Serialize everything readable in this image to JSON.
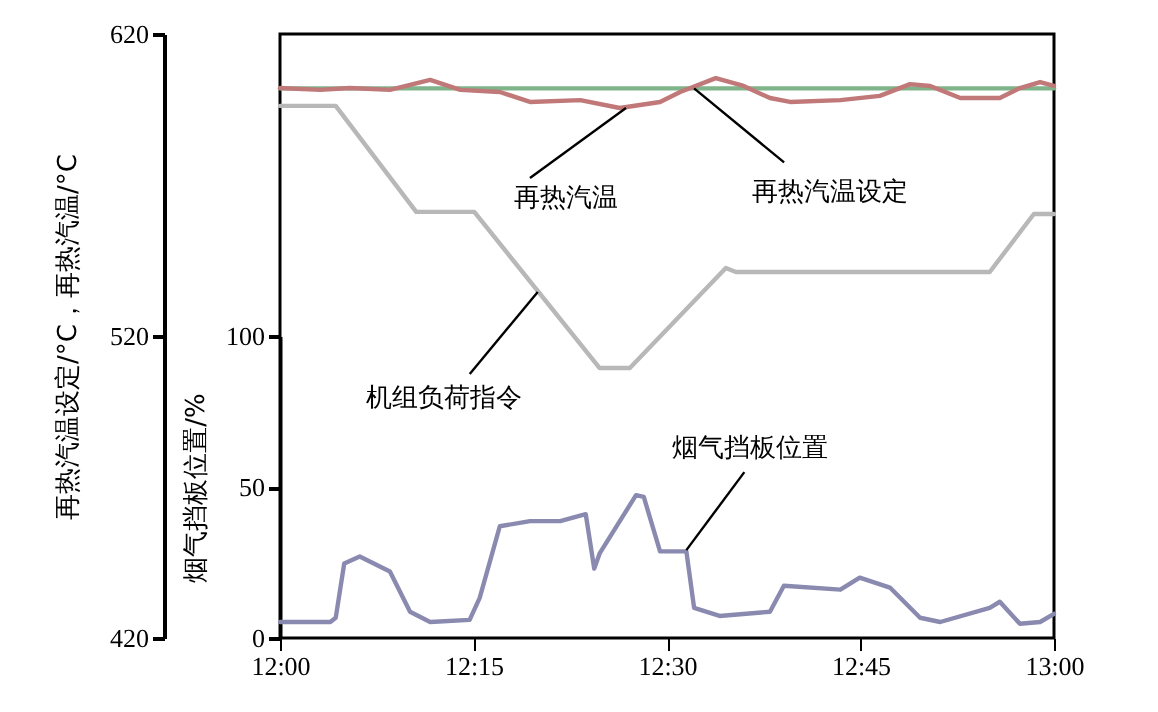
{
  "chart_data": {
    "type": "line",
    "ylabel": "再热汽温设定/°C，再热汽温/°C",
    "y2label": "烟气挡板位置/%",
    "xlim": [
      12,
      13
    ],
    "xticks": [
      {
        "value": 12,
        "label": "12:00"
      },
      {
        "value": 12.25,
        "label": "12:15"
      },
      {
        "value": 12.5,
        "label": "12:30"
      },
      {
        "value": 12.75,
        "label": "12:45"
      },
      {
        "value": 13,
        "label": "13:00"
      }
    ],
    "ylim": [
      420,
      620
    ],
    "yticks": [
      420,
      520,
      620
    ],
    "y2lim": [
      0,
      100
    ],
    "y2ticks": [
      0,
      50,
      100
    ],
    "series": [
      {
        "color": "#7fb38a",
        "x": [
          12,
          13
        ],
        "values": [
          602,
          602
        ]
      },
      {
        "color": "#c07878",
        "x": [
          12,
          12.052,
          12.09,
          12.142,
          12.194,
          12.233,
          12.284,
          12.323,
          12.388,
          12.439,
          12.491,
          12.517,
          12.563,
          12.599,
          12.633,
          12.659,
          12.724,
          12.775,
          12.814,
          12.84,
          12.879,
          12.93,
          12.956,
          12.982,
          13
        ],
        "values": [
          602.1,
          601.5,
          602.1,
          601.5,
          604.8,
          601.5,
          600.8,
          597.5,
          598.1,
          595.5,
          597.5,
          600.8,
          605.4,
          602.8,
          598.8,
          597.5,
          598.1,
          599.5,
          603.4,
          602.8,
          598.8,
          598.8,
          602.1,
          604.1,
          602.8
        ]
      },
      {
        "color": "#b8b8b8",
        "x": [
          12,
          12.072,
          12.176,
          12.251,
          12.413,
          12.452,
          12.576,
          12.589,
          12.917,
          12.974,
          13
        ],
        "values": [
          596.2,
          596.2,
          561.1,
          561.1,
          509.4,
          509.4,
          542.5,
          541.2,
          541.2,
          560.4,
          560.4
        ]
      },
      {
        "color": "#8a8ab0",
        "axis": "y2",
        "x": [
          12,
          12.065,
          12.072,
          12.083,
          12.103,
          12.142,
          12.168,
          12.194,
          12.245,
          12.258,
          12.284,
          12.323,
          12.362,
          12.395,
          12.406,
          12.413,
          12.439,
          12.46,
          12.47,
          12.491,
          12.525,
          12.535,
          12.568,
          12.633,
          12.651,
          12.724,
          12.749,
          12.788,
          12.827,
          12.853,
          12.917,
          12.93,
          12.956,
          12.982,
          13
        ],
        "values": [
          5.3,
          5.3,
          6.7,
          24.7,
          27,
          22,
          8.7,
          5.3,
          6,
          13.3,
          37,
          38.7,
          38.7,
          41,
          23,
          28,
          38.7,
          47.3,
          46.7,
          28.7,
          28.7,
          10,
          7.3,
          8.7,
          17.3,
          16,
          20,
          16.7,
          6.7,
          5.3,
          10,
          12,
          4.7,
          5.3,
          8
        ]
      }
    ],
    "annotations": [
      {
        "text": "再热汽温",
        "x": 12.447,
        "y": 595.5
      },
      {
        "text": "再热汽温设定",
        "x": 12.535,
        "y": 602
      },
      {
        "text": "机组负荷指令",
        "x": 12.333,
        "y": 534.6
      },
      {
        "text": "烟气挡板位置",
        "x": 12.525,
        "y": 449.1
      }
    ]
  }
}
